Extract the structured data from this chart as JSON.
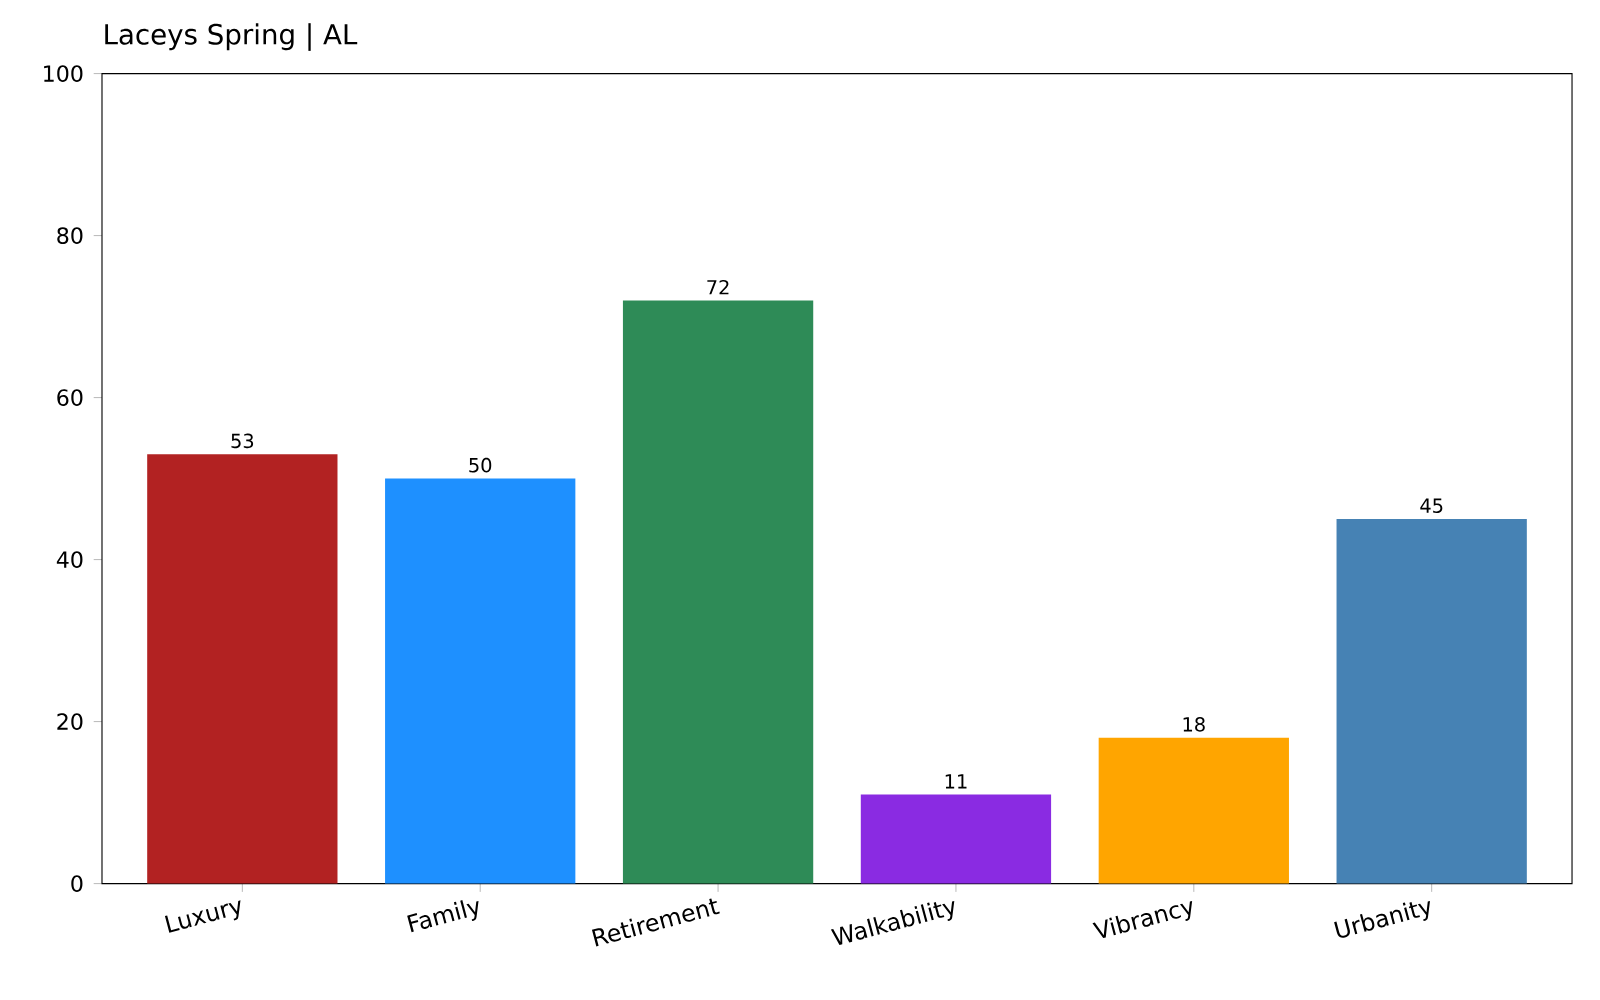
{
  "chart_data": {
    "type": "bar",
    "title": "Laceys Spring | AL",
    "categories": [
      "Luxury",
      "Family",
      "Retirement",
      "Walkability",
      "Vibrancy",
      "Urbanity"
    ],
    "values": [
      53,
      50,
      72,
      11,
      18,
      45
    ],
    "colors": [
      "#b22222",
      "#1e90ff",
      "#2e8b57",
      "#8a2be2",
      "#ffa500",
      "#4682b4"
    ],
    "ylim": [
      0,
      100
    ],
    "yticks": [
      0,
      20,
      40,
      60,
      80,
      100
    ],
    "data_labels": true
  }
}
